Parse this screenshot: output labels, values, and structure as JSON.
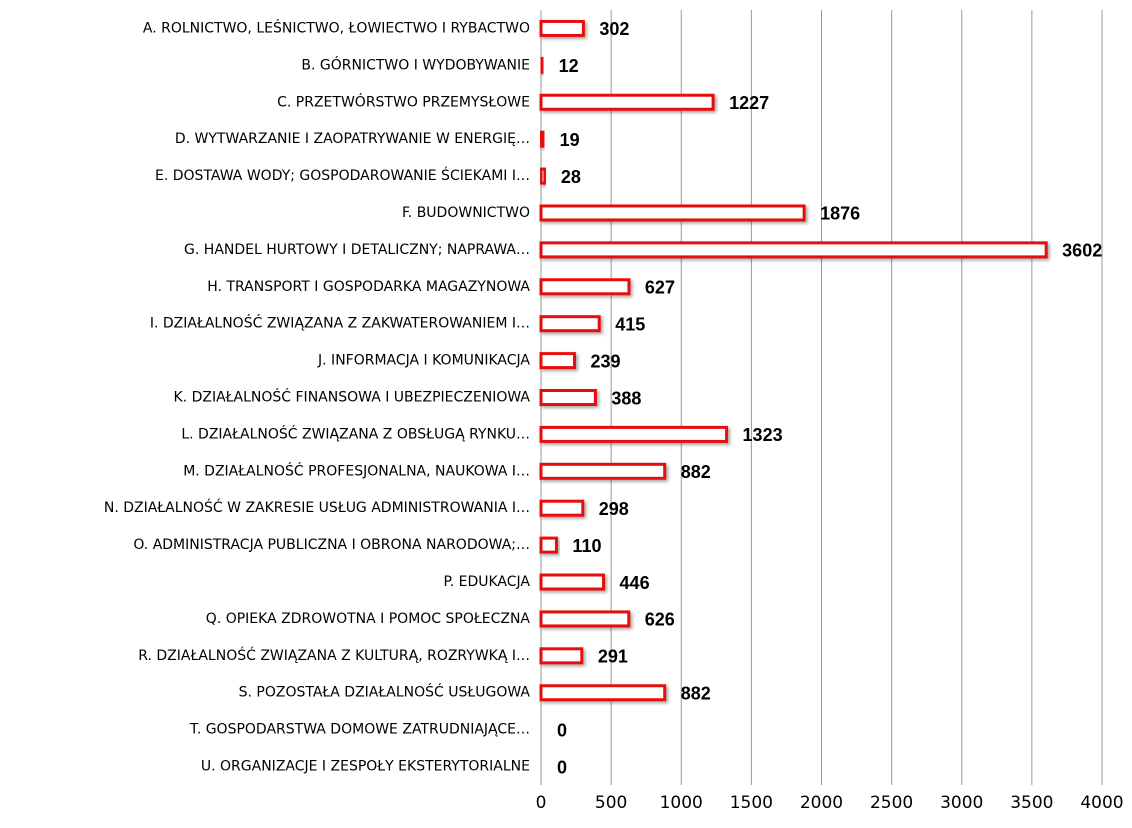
{
  "chart_data": {
    "type": "barh",
    "categories": [
      "A. ROLNICTWO, LEŚNICTWO, ŁOWIECTWO I RYBACTWO",
      "B. GÓRNICTWO I WYDOBYWANIE",
      "C. PRZETWÓRSTWO PRZEMYSŁOWE",
      "D. WYTWARZANIE I ZAOPATRYWANIE W ENERGIĘ…",
      "E. DOSTAWA WODY; GOSPODAROWANIE ŚCIEKAMI I…",
      "F. BUDOWNICTWO",
      "G. HANDEL HURTOWY I DETALICZNY; NAPRAWA…",
      "H. TRANSPORT I GOSPODARKA MAGAZYNOWA",
      "I. DZIAŁALNOŚĆ ZWIĄZANA Z ZAKWATEROWANIEM I…",
      "J. INFORMACJA I KOMUNIKACJA",
      "K. DZIAŁALNOŚĆ FINANSOWA I UBEZPIECZENIOWA",
      "L. DZIAŁALNOŚĆ ZWIĄZANA Z OBSŁUGĄ RYNKU…",
      "M. DZIAŁALNOŚĆ PROFESJONALNA, NAUKOWA I…",
      "N. DZIAŁALNOŚĆ W ZAKRESIE USŁUG ADMINISTROWANIA I…",
      "O. ADMINISTRACJA PUBLICZNA I OBRONA NARODOWA;…",
      "P. EDUKACJA",
      "Q. OPIEKA ZDROWOTNA I POMOC SPOŁECZNA",
      "R. DZIAŁALNOŚĆ ZWIĄZANA Z KULTURĄ, ROZRYWKĄ I…",
      "S. POZOSTAŁA DZIAŁALNOŚĆ USŁUGOWA",
      "T. GOSPODARSTWA DOMOWE ZATRUDNIAJĄCE…",
      "U. ORGANIZACJE I ZESPOŁY EKSTERYTORIALNE"
    ],
    "values": [
      302,
      12,
      1227,
      19,
      28,
      1876,
      3602,
      627,
      415,
      239,
      388,
      1323,
      882,
      298,
      110,
      446,
      626,
      291,
      882,
      0,
      0
    ],
    "color": "#e81010",
    "xlim": [
      0,
      4000
    ],
    "xticks": [
      0,
      500,
      1000,
      1500,
      2000,
      2500,
      3000,
      3500,
      4000
    ],
    "grid": true
  }
}
